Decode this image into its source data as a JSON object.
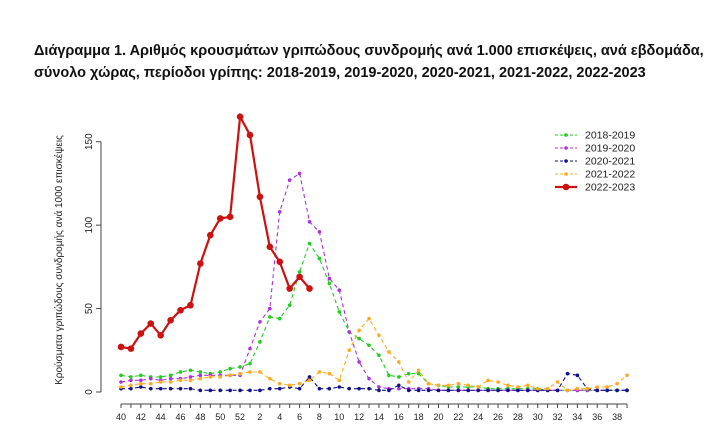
{
  "chart_data": {
    "type": "line",
    "title": "Διάγραμμα 1. Αριθμός κρουσμάτων γριπώδους συνδρομής ανά 1.000 επισκέψεις, ανά εβδομάδα,",
    "subtitle": "σύνολο χώρας, περίοδοι γρίπης: 2018-2019, 2019-2020, 2020-2021, 2021-2022, 2022-2023",
    "ylabel": "Κρούσματα γριπώδους συνδρομής ανά 1000 επισκέψεις",
    "xlabel": "",
    "ylim": [
      0,
      175
    ],
    "yticks": [
      0,
      50,
      100,
      150
    ],
    "x_tick_labels": [
      "40",
      "42",
      "44",
      "46",
      "48",
      "50",
      "52",
      "2",
      "4",
      "6",
      "8",
      "10",
      "12",
      "14",
      "16",
      "18",
      "20",
      "22",
      "24",
      "26",
      "28",
      "30",
      "32",
      "34",
      "36",
      "38"
    ],
    "legend_position": "top-right",
    "grid": false,
    "x": [
      40,
      41,
      42,
      43,
      44,
      45,
      46,
      47,
      48,
      49,
      50,
      51,
      52,
      1,
      2,
      3,
      4,
      5,
      6,
      7,
      8,
      9,
      10,
      11,
      12,
      13,
      14,
      15,
      16,
      17,
      18,
      19,
      20,
      21,
      22,
      23,
      24,
      25,
      26,
      27,
      28,
      29,
      30,
      31,
      32,
      33,
      34,
      35,
      36,
      37,
      38,
      39
    ],
    "series": [
      {
        "name": "2018-2019",
        "color": "#22cc22",
        "style": "dashed",
        "values": [
          10,
          9,
          10,
          9,
          9,
          10,
          12,
          13,
          12,
          11,
          12,
          14,
          15,
          17,
          30,
          45,
          44,
          52,
          72,
          89,
          80,
          65,
          48,
          36,
          32,
          28,
          22,
          10,
          9,
          11,
          11,
          5,
          4,
          3,
          3,
          3,
          3,
          2,
          2,
          2,
          2,
          2,
          2,
          1,
          1,
          1,
          1,
          1,
          1,
          1,
          1,
          1
        ]
      },
      {
        "name": "2019-2020",
        "color": "#aa33dd",
        "style": "dashed",
        "values": [
          6,
          7,
          7,
          8,
          7,
          8,
          8,
          9,
          10,
          10,
          10,
          10,
          10,
          26,
          42,
          50,
          108,
          127,
          131,
          102,
          96,
          68,
          61,
          36,
          18,
          8,
          3,
          2,
          2,
          2,
          2,
          2,
          1,
          1,
          1,
          1,
          1,
          1,
          1,
          1,
          1,
          1,
          1,
          1,
          1,
          1,
          1,
          1,
          1,
          1,
          1,
          1
        ]
      },
      {
        "name": "2020-2021",
        "color": "#111188",
        "style": "dashed",
        "values": [
          2,
          2,
          3,
          2,
          2,
          2,
          2,
          2,
          1,
          1,
          1,
          1,
          1,
          1,
          1,
          2,
          2,
          3,
          2,
          9,
          2,
          2,
          3,
          2,
          2,
          2,
          1,
          1,
          4,
          1,
          1,
          1,
          1,
          1,
          1,
          1,
          1,
          1,
          1,
          1,
          1,
          1,
          1,
          1,
          1,
          11,
          10,
          2,
          1,
          1,
          1,
          1
        ]
      },
      {
        "name": "2021-2022",
        "color": "#ffaa22",
        "style": "dashed",
        "values": [
          3,
          4,
          5,
          5,
          6,
          6,
          7,
          7,
          8,
          9,
          9,
          10,
          11,
          12,
          12,
          8,
          5,
          4,
          5,
          7,
          12,
          11,
          7,
          25,
          37,
          44,
          34,
          24,
          18,
          6,
          13,
          5,
          4,
          4,
          5,
          4,
          3,
          7,
          6,
          4,
          3,
          4,
          2,
          2,
          6,
          1,
          2,
          2,
          3,
          3,
          5,
          10
        ]
      },
      {
        "name": "2022-2023",
        "color": "#cc1111",
        "style": "solid",
        "values": [
          27,
          26,
          35,
          41,
          34,
          43,
          49,
          52,
          77,
          94,
          104,
          105,
          165,
          154,
          117,
          87,
          78,
          62,
          69,
          62,
          null,
          null,
          null,
          null,
          null,
          null,
          null,
          null,
          null,
          null,
          null,
          null,
          null,
          null,
          null,
          null,
          null,
          null,
          null,
          null,
          null,
          null,
          null,
          null,
          null,
          null,
          null,
          null,
          null,
          null,
          null,
          null
        ]
      }
    ]
  }
}
